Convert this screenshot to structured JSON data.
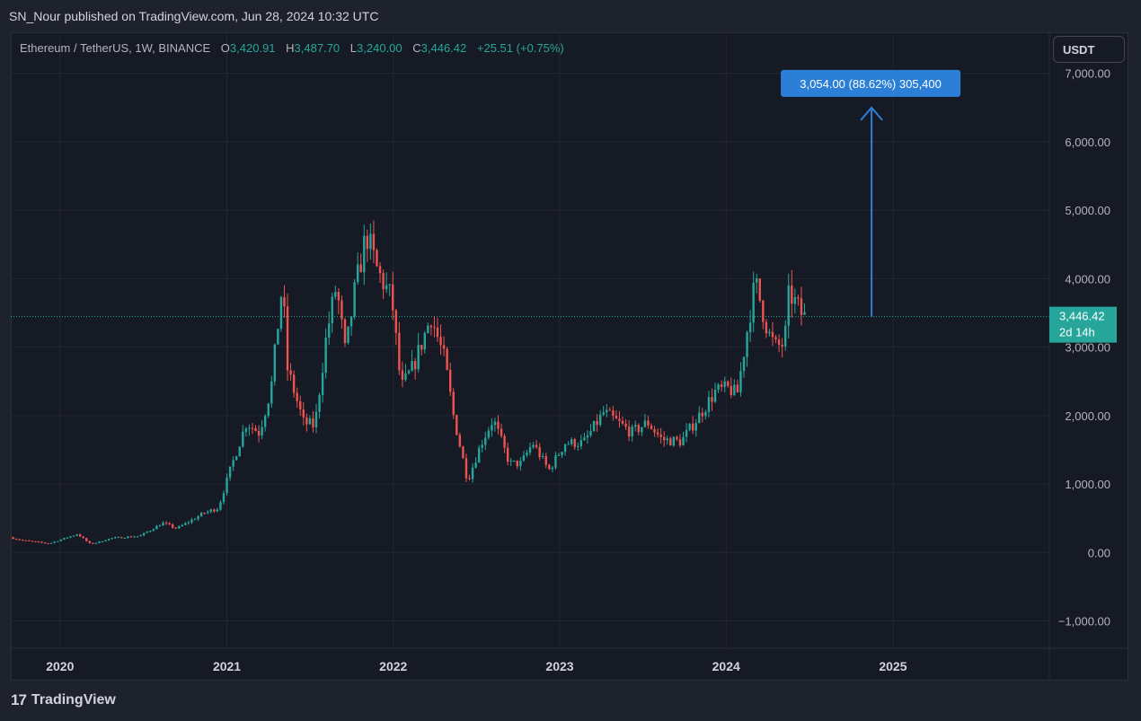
{
  "header": {
    "published_by": "SN_Nour published on TradingView.com, Jun 28, 2024 10:32 UTC"
  },
  "legend": {
    "symbol": "Ethereum / TetherUS, 1W, BINANCE",
    "o_label": "O",
    "o_value": "3,420.91",
    "h_label": "H",
    "h_value": "3,487.70",
    "l_label": "L",
    "l_value": "3,240.00",
    "c_label": "C",
    "c_value": "3,446.42",
    "change": "+25.51 (+0.75%)"
  },
  "currency_button": {
    "label": "USDT"
  },
  "last_price": {
    "value": "3,446.42",
    "countdown": "2d 14h"
  },
  "measure": {
    "label": "3,054.00 (88.62%) 305,400"
  },
  "footer": {
    "brand": "TradingView"
  },
  "colors": {
    "up": "#26a69a",
    "down": "#ef5350",
    "measure": "#2b7fd6",
    "background": "#161a25"
  },
  "chart_data": {
    "type": "candlestick",
    "title": "Ethereum / TetherUS, 1W, BINANCE",
    "x_ticks": [
      "2020",
      "2021",
      "2022",
      "2023",
      "2024",
      "2025"
    ],
    "y_ticks": [
      "7,000.00",
      "6,000.00",
      "5,000.00",
      "4,000.00",
      "3,000.00",
      "2,000.00",
      "1,000.00",
      "0.00",
      "−1,000.00"
    ],
    "y_tick_values": [
      7000,
      6000,
      5000,
      4000,
      3000,
      2000,
      1000,
      0,
      -1000
    ],
    "ylim": [
      -1400,
      7600
    ],
    "xlim": [
      "2019-09-15",
      "2025-12-10"
    ],
    "last_close": 3446.42,
    "measure_from": 3446.42,
    "measure_to": 6500,
    "measure_date": "2024-11-15",
    "grid": true,
    "keypoints": [
      [
        "2019-09-20",
        220
      ],
      [
        "2019-10-15",
        180
      ],
      [
        "2019-12-15",
        130
      ],
      [
        "2020-02-15",
        270
      ],
      [
        "2020-03-15",
        120
      ],
      [
        "2020-05-01",
        210
      ],
      [
        "2020-07-01",
        240
      ],
      [
        "2020-08-20",
        430
      ],
      [
        "2020-09-20",
        350
      ],
      [
        "2020-11-20",
        580
      ],
      [
        "2020-12-20",
        650
      ],
      [
        "2021-01-15",
        1200
      ],
      [
        "2021-02-20",
        1900
      ],
      [
        "2021-03-20",
        1750
      ],
      [
        "2021-04-15",
        2400
      ],
      [
        "2021-05-10",
        3950
      ],
      [
        "2021-05-20",
        2700
      ],
      [
        "2021-06-25",
        1900
      ],
      [
        "2021-07-20",
        1850
      ],
      [
        "2021-08-15",
        3200
      ],
      [
        "2021-09-05",
        3900
      ],
      [
        "2021-09-25",
        2900
      ],
      [
        "2021-10-15",
        3800
      ],
      [
        "2021-11-10",
        4650
      ],
      [
        "2021-12-05",
        4100
      ],
      [
        "2022-01-05",
        3700
      ],
      [
        "2022-01-25",
        2400
      ],
      [
        "2022-02-20",
        2700
      ],
      [
        "2022-04-01",
        3450
      ],
      [
        "2022-05-01",
        2800
      ],
      [
        "2022-05-20",
        2000
      ],
      [
        "2022-06-20",
        1050
      ],
      [
        "2022-07-20",
        1600
      ],
      [
        "2022-08-15",
        1950
      ],
      [
        "2022-09-20",
        1300
      ],
      [
        "2022-10-15",
        1300
      ],
      [
        "2022-11-10",
        1600
      ],
      [
        "2022-12-15",
        1200
      ],
      [
        "2023-01-20",
        1600
      ],
      [
        "2023-03-01",
        1600
      ],
      [
        "2023-04-15",
        2050
      ],
      [
        "2023-06-15",
        1750
      ],
      [
        "2023-07-20",
        1900
      ],
      [
        "2023-08-20",
        1650
      ],
      [
        "2023-10-01",
        1620
      ],
      [
        "2023-11-10",
        2000
      ],
      [
        "2023-12-15",
        2350
      ],
      [
        "2024-01-15",
        2400
      ],
      [
        "2024-02-01",
        2300
      ],
      [
        "2024-02-28",
        3450
      ],
      [
        "2024-03-12",
        3950
      ],
      [
        "2024-04-10",
        3200
      ],
      [
        "2024-04-25",
        3000
      ],
      [
        "2024-05-15",
        3050
      ],
      [
        "2024-05-25",
        3800
      ],
      [
        "2024-06-25",
        3446
      ]
    ]
  }
}
